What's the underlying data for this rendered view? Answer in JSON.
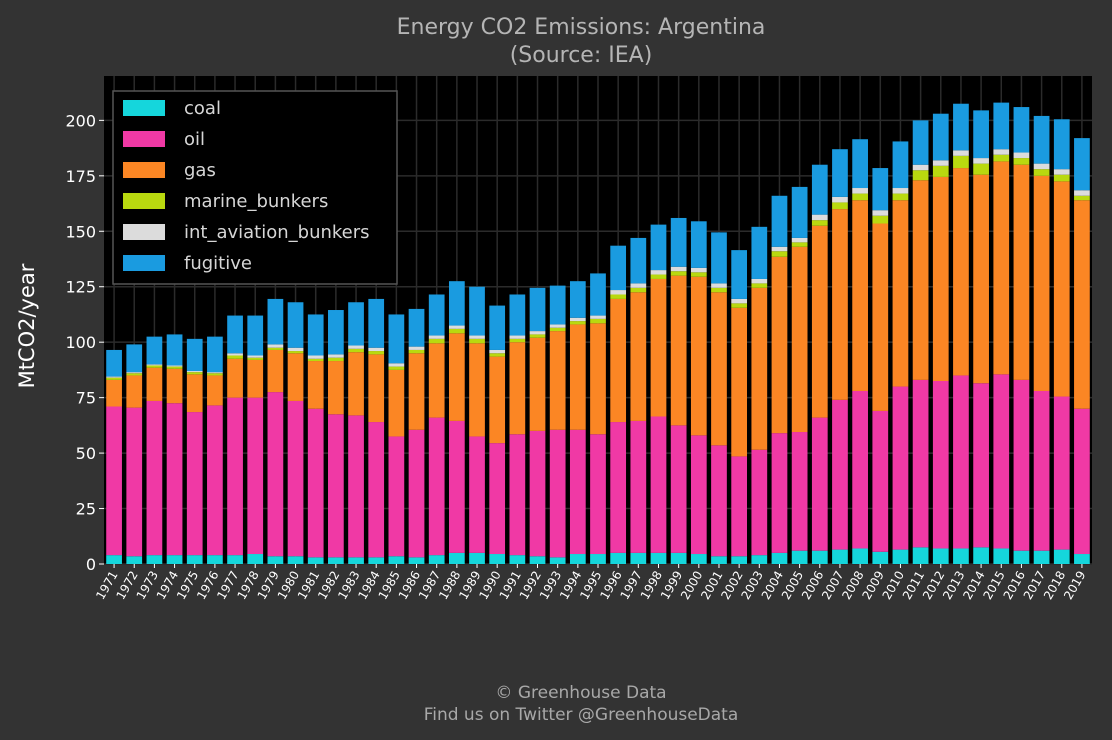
{
  "chart_data": {
    "type": "bar",
    "stacked": true,
    "title": "Energy CO2 Emissions: Argentina",
    "subtitle": "(Source: IEA)",
    "ylabel": "MtCO2/year",
    "xlabel": "",
    "ylim": [
      0,
      220
    ],
    "yticks": [
      0,
      25,
      50,
      75,
      100,
      125,
      150,
      175,
      200
    ],
    "grid": true,
    "legend_position": "top-left",
    "categories": [
      "1971",
      "1972",
      "1973",
      "1974",
      "1975",
      "1976",
      "1977",
      "1978",
      "1979",
      "1980",
      "1981",
      "1982",
      "1983",
      "1984",
      "1985",
      "1986",
      "1987",
      "1988",
      "1989",
      "1990",
      "1991",
      "1992",
      "1993",
      "1994",
      "1995",
      "1996",
      "1997",
      "1998",
      "1999",
      "2000",
      "2001",
      "2002",
      "2003",
      "2004",
      "2005",
      "2006",
      "2007",
      "2008",
      "2009",
      "2010",
      "2011",
      "2012",
      "2013",
      "2014",
      "2015",
      "2016",
      "2017",
      "2018",
      "2019"
    ],
    "series": [
      {
        "name": "coal",
        "color": "#15d6dc",
        "values": [
          4,
          3.5,
          4,
          4,
          4,
          4,
          4,
          4.5,
          3.5,
          3.5,
          3,
          3,
          3,
          3,
          3.5,
          3,
          4,
          5,
          5,
          4.5,
          4,
          3.5,
          3,
          4.5,
          4.5,
          5,
          5,
          5,
          5,
          4.5,
          3.5,
          3.5,
          4,
          5,
          6,
          6,
          6.5,
          7,
          5.5,
          6.5,
          7.5,
          7,
          7,
          7.5,
          7,
          6,
          6,
          6.5,
          4.5
        ]
      },
      {
        "name": "oil",
        "color": "#f039a5",
        "values": [
          67,
          67,
          69.5,
          68.5,
          64.5,
          67.5,
          71,
          70.5,
          74,
          70,
          67,
          64.5,
          64,
          61,
          54,
          57.5,
          62,
          59.5,
          52.5,
          50,
          54.5,
          56.5,
          57.5,
          56,
          54,
          59,
          59.5,
          61.5,
          57.5,
          53.5,
          50,
          45,
          47.5,
          54,
          53.5,
          60,
          67.5,
          71,
          63.5,
          73.5,
          75.5,
          75.5,
          78,
          74,
          78.5,
          77,
          72,
          69,
          65.5
        ]
      },
      {
        "name": "gas",
        "color": "#fb8624",
        "values": [
          12,
          14.5,
          15,
          15.5,
          17,
          13.5,
          17.5,
          17,
          19,
          21.5,
          21.5,
          24,
          28.5,
          30.5,
          30,
          34.5,
          33.5,
          39.5,
          42,
          39,
          41.5,
          42,
          44.5,
          47.5,
          50,
          55.5,
          58,
          62,
          67.5,
          71.5,
          69,
          67,
          73,
          79.5,
          83.5,
          86.5,
          86,
          86,
          84.5,
          84,
          90,
          92,
          93.5,
          94,
          96,
          97,
          97,
          97,
          94
        ]
      },
      {
        "name": "marine_bunkers",
        "color": "#b9d90f",
        "values": [
          1,
          1,
          1,
          1,
          1,
          1,
          1.5,
          1,
          1,
          1,
          1,
          1.5,
          1.5,
          1.5,
          1.5,
          1.5,
          2,
          2,
          2,
          1.5,
          1.5,
          1.5,
          1.5,
          1.5,
          2,
          2,
          2,
          2,
          2,
          2,
          2,
          2,
          2,
          2.5,
          2,
          2.5,
          3,
          3,
          3.5,
          3,
          4.5,
          5,
          5.5,
          5,
          3,
          3,
          3,
          3,
          2
        ]
      },
      {
        "name": "int_aviation_bunkers",
        "color": "#dcdcdc",
        "values": [
          0.5,
          0.5,
          0.5,
          0.5,
          0.5,
          0.5,
          1,
          1,
          1.5,
          1.5,
          1.5,
          1.5,
          1.5,
          1.5,
          1.5,
          1.5,
          1.5,
          1.5,
          1.5,
          1.5,
          1.5,
          1.5,
          1.5,
          1.5,
          1.5,
          2,
          2,
          2,
          2,
          2,
          2,
          2,
          2,
          2,
          2,
          2.5,
          2.5,
          2.5,
          2.5,
          2.5,
          2.5,
          2.5,
          2.5,
          2.5,
          2.5,
          2.5,
          2.5,
          2.5,
          2.5
        ]
      },
      {
        "name": "fugitive",
        "color": "#1a9be0",
        "values": [
          12,
          12.5,
          12.5,
          14,
          14.5,
          16,
          17,
          18,
          20.5,
          20.5,
          18.5,
          20,
          19.5,
          22,
          22,
          17,
          18.5,
          20,
          22,
          20,
          18.5,
          19.5,
          17.5,
          16.5,
          19,
          20,
          20.5,
          20.5,
          22,
          21,
          23,
          22,
          23.5,
          23,
          23,
          22.5,
          21.5,
          22,
          19,
          21,
          20,
          21,
          21,
          21.5,
          21,
          20.5,
          21.5,
          22.5,
          23.5
        ]
      }
    ]
  },
  "footer": {
    "line1": "© Greenhouse Data",
    "line2": "Find us on Twitter @GreenhouseData"
  }
}
